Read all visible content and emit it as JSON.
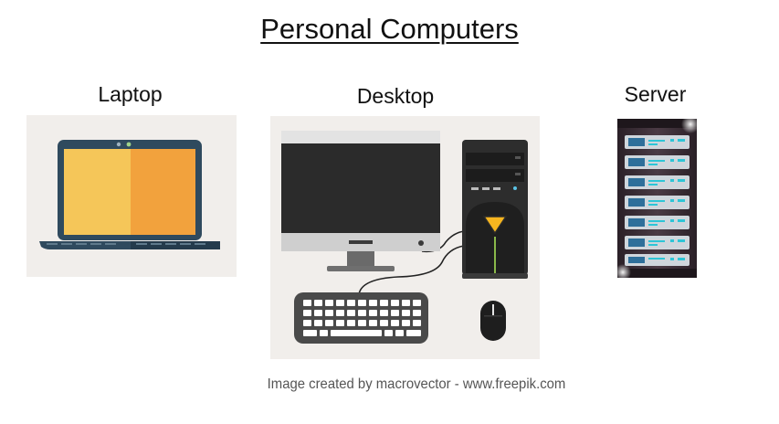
{
  "title": "Personal Computers",
  "devices": {
    "laptop": {
      "label": "Laptop"
    },
    "desktop": {
      "label": "Desktop"
    },
    "server": {
      "label": "Server"
    }
  },
  "credit": "Image created by macrovector - www.freepik.com",
  "colors": {
    "panel": "#f1eeeb",
    "laptop_body": "#2f4a5e",
    "laptop_screen_left": "#f5c659",
    "laptop_screen_right": "#f2a23d",
    "monitor_frame": "#d7d7d7",
    "screen_black": "#2b2b2b",
    "tower_accent": "#f6b51f",
    "server_led": "#2ec5d6"
  },
  "icons": [
    "laptop-icon",
    "monitor-icon",
    "tower-icon",
    "keyboard-icon",
    "mouse-icon",
    "server-rack-icon"
  ]
}
